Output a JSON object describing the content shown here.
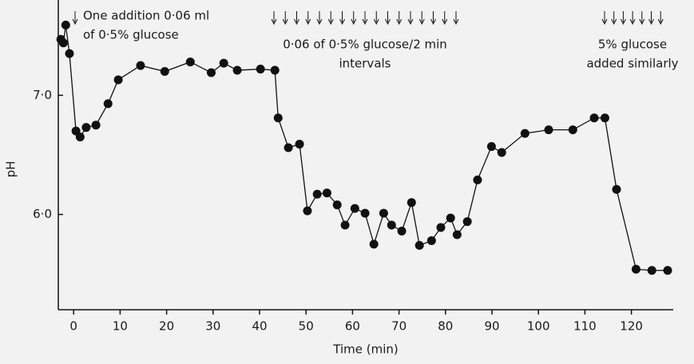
{
  "chart_data": {
    "type": "line",
    "x_label": "Time (min)",
    "y_label": "pH",
    "annotations": [
      "One addition 0·06 ml",
      "of 0·5% glucose",
      "0·06 of 0·5% glucose/2 min",
      "intervals",
      "5% glucose",
      "added similarly"
    ],
    "x": [
      -2.75,
      -2.2,
      -1.7,
      -0.9,
      0.5,
      1.4,
      2.7,
      4.8,
      7.4,
      9.6,
      14.4,
      19.6,
      25.1,
      29.6,
      32.3,
      35.2,
      40.2,
      43.3,
      44.0,
      46.2,
      48.6,
      50.3,
      52.4,
      54.5,
      56.7,
      58.4,
      60.5,
      62.7,
      64.6,
      66.7,
      68.4,
      70.6,
      72.7,
      74.4,
      77.0,
      79.0,
      81.1,
      82.5,
      84.7,
      86.9,
      89.9,
      92.1,
      97.1,
      102.2,
      107.4,
      112.0,
      114.3,
      116.8,
      121.0,
      124.4,
      127.8
    ],
    "series": [
      {
        "color": "#111111",
        "values": [
          7.47,
          7.44,
          7.59,
          7.35,
          6.7,
          6.65,
          6.73,
          6.75,
          6.93,
          7.13,
          7.25,
          7.2,
          7.28,
          7.19,
          7.27,
          7.21,
          7.22,
          7.21,
          6.81,
          6.56,
          6.59,
          6.03,
          6.17,
          6.18,
          6.08,
          5.91,
          6.05,
          6.01,
          5.75,
          6.01,
          5.91,
          5.86,
          6.1,
          5.74,
          5.78,
          5.89,
          5.97,
          5.83,
          5.94,
          6.29,
          6.57,
          6.52,
          6.68,
          6.71,
          6.71,
          6.81,
          6.81,
          6.21,
          5.54,
          5.53,
          5.53
        ]
      }
    ],
    "xlim": [
      -3.3,
      129
    ],
    "ylim": [
      5.2,
      7.8
    ],
    "xticks": [
      0,
      10,
      20,
      30,
      40,
      50,
      60,
      70,
      80,
      90,
      100,
      110,
      120
    ],
    "yticks": [
      {
        "value": 6,
        "label": "6·0"
      },
      {
        "value": 7,
        "label": "7·0"
      }
    ]
  }
}
